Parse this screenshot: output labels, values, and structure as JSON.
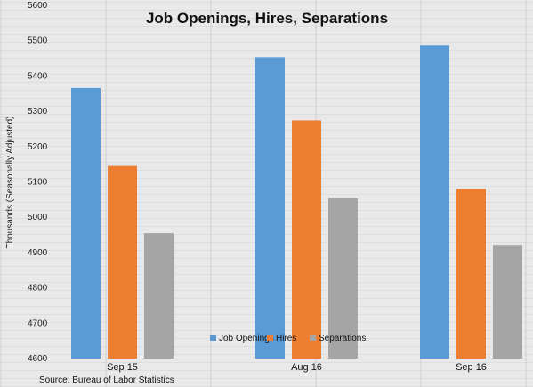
{
  "chart_data": {
    "type": "bar",
    "title": "Job Openings, Hires, Separations",
    "ylabel": "Thousands (Seasonally Adjusted)",
    "xlabel": "",
    "categories": [
      "Sep 15",
      "Aug 16",
      "Sep 16"
    ],
    "series": [
      {
        "name": "Job Openings",
        "color": "#5b9bd5",
        "values": [
          5366,
          5453,
          5486
        ]
      },
      {
        "name": "Hires",
        "color": "#ed7d31",
        "values": [
          5145,
          5274,
          5080
        ]
      },
      {
        "name": "Separations",
        "color": "#a5a5a5",
        "values": [
          4955,
          5054,
          4922
        ]
      }
    ],
    "ylim": [
      4600,
      5600
    ],
    "yticks": [
      4600,
      4700,
      4800,
      4900,
      5000,
      5100,
      5200,
      5300,
      5400,
      5500,
      5600
    ],
    "grid": false,
    "legend_position": "bottom-center",
    "source": "Source: Bureau of Labor Statistics"
  }
}
